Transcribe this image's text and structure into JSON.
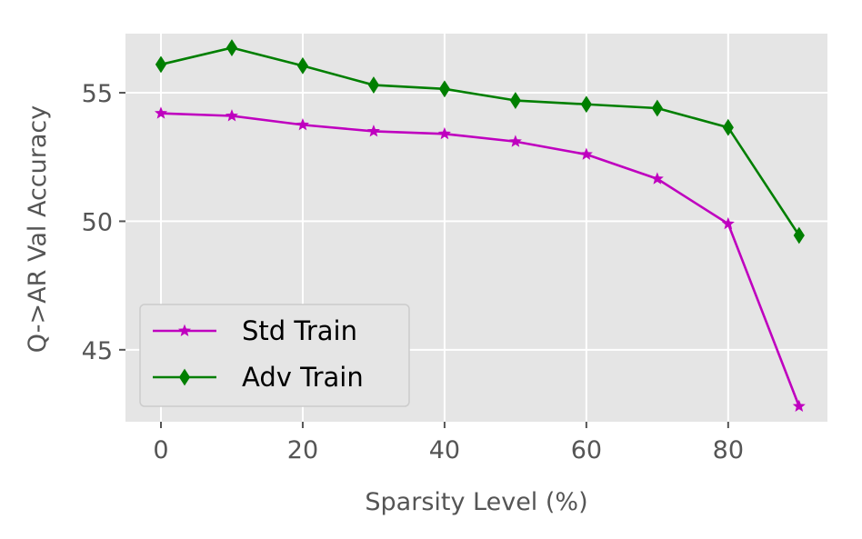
{
  "chart_data": {
    "type": "line",
    "xlabel": "Sparsity Level (%)",
    "ylabel": "Q->AR Val Accuracy",
    "x": [
      0,
      10,
      20,
      30,
      40,
      50,
      60,
      70,
      80,
      90
    ],
    "xlim": [
      -5,
      94
    ],
    "ylim": [
      42.2,
      57.3
    ],
    "xticks": [
      0,
      20,
      40,
      60,
      80
    ],
    "yticks": [
      45,
      50,
      55
    ],
    "grid": true,
    "legend_position": "lower-left",
    "series": [
      {
        "name": "Std Train",
        "color": "#bf00bf",
        "marker": "star",
        "values": [
          54.2,
          54.1,
          53.75,
          53.5,
          53.4,
          53.1,
          52.6,
          51.65,
          49.9,
          42.8
        ]
      },
      {
        "name": "Adv Train",
        "color": "#007f00",
        "marker": "thin-diamond",
        "values": [
          56.1,
          56.75,
          56.05,
          55.3,
          55.15,
          54.7,
          54.55,
          54.4,
          53.65,
          49.45
        ]
      }
    ]
  }
}
